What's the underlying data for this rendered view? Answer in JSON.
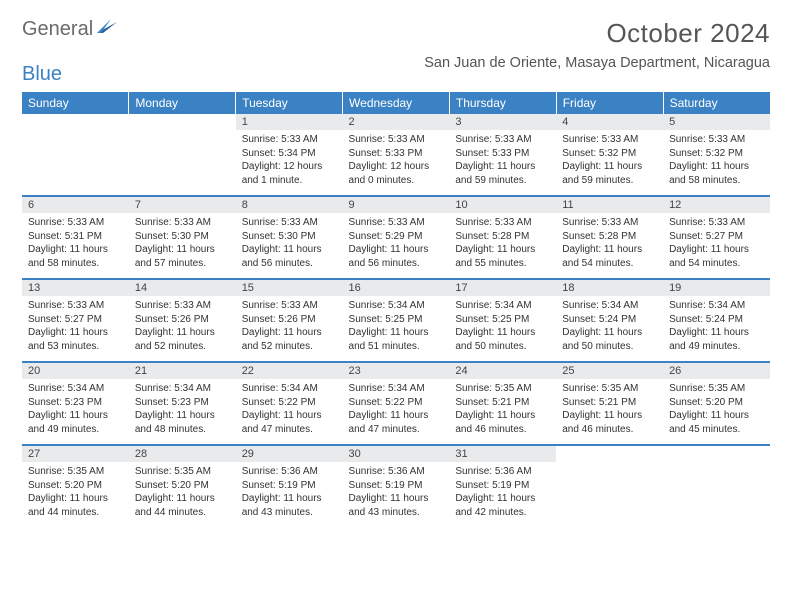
{
  "logo": {
    "word1": "General",
    "word2": "Blue"
  },
  "title": "October 2024",
  "location": "San Juan de Oriente, Masaya Department, Nicaragua",
  "colors": {
    "header_bg": "#3b82c4",
    "header_text": "#ffffff",
    "daynum_bg": "#e9eaec",
    "rule": "#3b82c4",
    "text": "#333333",
    "title_text": "#555555",
    "logo_gray": "#6a6a6a",
    "logo_blue": "#3b82c4"
  },
  "days_of_week": [
    "Sunday",
    "Monday",
    "Tuesday",
    "Wednesday",
    "Thursday",
    "Friday",
    "Saturday"
  ],
  "weeks": [
    [
      null,
      null,
      {
        "n": "1",
        "sr": "Sunrise: 5:33 AM",
        "ss": "Sunset: 5:34 PM",
        "d1": "Daylight: 12 hours",
        "d2": "and 1 minute."
      },
      {
        "n": "2",
        "sr": "Sunrise: 5:33 AM",
        "ss": "Sunset: 5:33 PM",
        "d1": "Daylight: 12 hours",
        "d2": "and 0 minutes."
      },
      {
        "n": "3",
        "sr": "Sunrise: 5:33 AM",
        "ss": "Sunset: 5:33 PM",
        "d1": "Daylight: 11 hours",
        "d2": "and 59 minutes."
      },
      {
        "n": "4",
        "sr": "Sunrise: 5:33 AM",
        "ss": "Sunset: 5:32 PM",
        "d1": "Daylight: 11 hours",
        "d2": "and 59 minutes."
      },
      {
        "n": "5",
        "sr": "Sunrise: 5:33 AM",
        "ss": "Sunset: 5:32 PM",
        "d1": "Daylight: 11 hours",
        "d2": "and 58 minutes."
      }
    ],
    [
      {
        "n": "6",
        "sr": "Sunrise: 5:33 AM",
        "ss": "Sunset: 5:31 PM",
        "d1": "Daylight: 11 hours",
        "d2": "and 58 minutes."
      },
      {
        "n": "7",
        "sr": "Sunrise: 5:33 AM",
        "ss": "Sunset: 5:30 PM",
        "d1": "Daylight: 11 hours",
        "d2": "and 57 minutes."
      },
      {
        "n": "8",
        "sr": "Sunrise: 5:33 AM",
        "ss": "Sunset: 5:30 PM",
        "d1": "Daylight: 11 hours",
        "d2": "and 56 minutes."
      },
      {
        "n": "9",
        "sr": "Sunrise: 5:33 AM",
        "ss": "Sunset: 5:29 PM",
        "d1": "Daylight: 11 hours",
        "d2": "and 56 minutes."
      },
      {
        "n": "10",
        "sr": "Sunrise: 5:33 AM",
        "ss": "Sunset: 5:28 PM",
        "d1": "Daylight: 11 hours",
        "d2": "and 55 minutes."
      },
      {
        "n": "11",
        "sr": "Sunrise: 5:33 AM",
        "ss": "Sunset: 5:28 PM",
        "d1": "Daylight: 11 hours",
        "d2": "and 54 minutes."
      },
      {
        "n": "12",
        "sr": "Sunrise: 5:33 AM",
        "ss": "Sunset: 5:27 PM",
        "d1": "Daylight: 11 hours",
        "d2": "and 54 minutes."
      }
    ],
    [
      {
        "n": "13",
        "sr": "Sunrise: 5:33 AM",
        "ss": "Sunset: 5:27 PM",
        "d1": "Daylight: 11 hours",
        "d2": "and 53 minutes."
      },
      {
        "n": "14",
        "sr": "Sunrise: 5:33 AM",
        "ss": "Sunset: 5:26 PM",
        "d1": "Daylight: 11 hours",
        "d2": "and 52 minutes."
      },
      {
        "n": "15",
        "sr": "Sunrise: 5:33 AM",
        "ss": "Sunset: 5:26 PM",
        "d1": "Daylight: 11 hours",
        "d2": "and 52 minutes."
      },
      {
        "n": "16",
        "sr": "Sunrise: 5:34 AM",
        "ss": "Sunset: 5:25 PM",
        "d1": "Daylight: 11 hours",
        "d2": "and 51 minutes."
      },
      {
        "n": "17",
        "sr": "Sunrise: 5:34 AM",
        "ss": "Sunset: 5:25 PM",
        "d1": "Daylight: 11 hours",
        "d2": "and 50 minutes."
      },
      {
        "n": "18",
        "sr": "Sunrise: 5:34 AM",
        "ss": "Sunset: 5:24 PM",
        "d1": "Daylight: 11 hours",
        "d2": "and 50 minutes."
      },
      {
        "n": "19",
        "sr": "Sunrise: 5:34 AM",
        "ss": "Sunset: 5:24 PM",
        "d1": "Daylight: 11 hours",
        "d2": "and 49 minutes."
      }
    ],
    [
      {
        "n": "20",
        "sr": "Sunrise: 5:34 AM",
        "ss": "Sunset: 5:23 PM",
        "d1": "Daylight: 11 hours",
        "d2": "and 49 minutes."
      },
      {
        "n": "21",
        "sr": "Sunrise: 5:34 AM",
        "ss": "Sunset: 5:23 PM",
        "d1": "Daylight: 11 hours",
        "d2": "and 48 minutes."
      },
      {
        "n": "22",
        "sr": "Sunrise: 5:34 AM",
        "ss": "Sunset: 5:22 PM",
        "d1": "Daylight: 11 hours",
        "d2": "and 47 minutes."
      },
      {
        "n": "23",
        "sr": "Sunrise: 5:34 AM",
        "ss": "Sunset: 5:22 PM",
        "d1": "Daylight: 11 hours",
        "d2": "and 47 minutes."
      },
      {
        "n": "24",
        "sr": "Sunrise: 5:35 AM",
        "ss": "Sunset: 5:21 PM",
        "d1": "Daylight: 11 hours",
        "d2": "and 46 minutes."
      },
      {
        "n": "25",
        "sr": "Sunrise: 5:35 AM",
        "ss": "Sunset: 5:21 PM",
        "d1": "Daylight: 11 hours",
        "d2": "and 46 minutes."
      },
      {
        "n": "26",
        "sr": "Sunrise: 5:35 AM",
        "ss": "Sunset: 5:20 PM",
        "d1": "Daylight: 11 hours",
        "d2": "and 45 minutes."
      }
    ],
    [
      {
        "n": "27",
        "sr": "Sunrise: 5:35 AM",
        "ss": "Sunset: 5:20 PM",
        "d1": "Daylight: 11 hours",
        "d2": "and 44 minutes."
      },
      {
        "n": "28",
        "sr": "Sunrise: 5:35 AM",
        "ss": "Sunset: 5:20 PM",
        "d1": "Daylight: 11 hours",
        "d2": "and 44 minutes."
      },
      {
        "n": "29",
        "sr": "Sunrise: 5:36 AM",
        "ss": "Sunset: 5:19 PM",
        "d1": "Daylight: 11 hours",
        "d2": "and 43 minutes."
      },
      {
        "n": "30",
        "sr": "Sunrise: 5:36 AM",
        "ss": "Sunset: 5:19 PM",
        "d1": "Daylight: 11 hours",
        "d2": "and 43 minutes."
      },
      {
        "n": "31",
        "sr": "Sunrise: 5:36 AM",
        "ss": "Sunset: 5:19 PM",
        "d1": "Daylight: 11 hours",
        "d2": "and 42 minutes."
      },
      null,
      null
    ]
  ]
}
